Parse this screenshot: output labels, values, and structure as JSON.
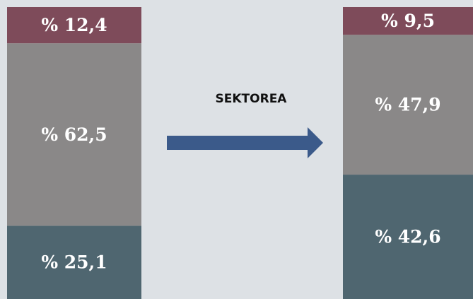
{
  "chart_data": {
    "type": "stacked-bar",
    "annotation": "SEKTOREA",
    "categories": [
      null,
      null
    ],
    "series": [
      {
        "color": "#4f6670",
        "values": [
          25.1,
          42.6
        ],
        "value_labels": [
          "% 25,1",
          "% 42,6"
        ]
      },
      {
        "color": "#8a8888",
        "values": [
          62.5,
          47.9
        ],
        "value_labels": [
          "% 62,5",
          "% 47,9"
        ]
      },
      {
        "color": "#7e4b5a",
        "values": [
          12.4,
          9.5
        ],
        "value_labels": [
          "% 12,4",
          "% 9,5"
        ]
      }
    ]
  }
}
